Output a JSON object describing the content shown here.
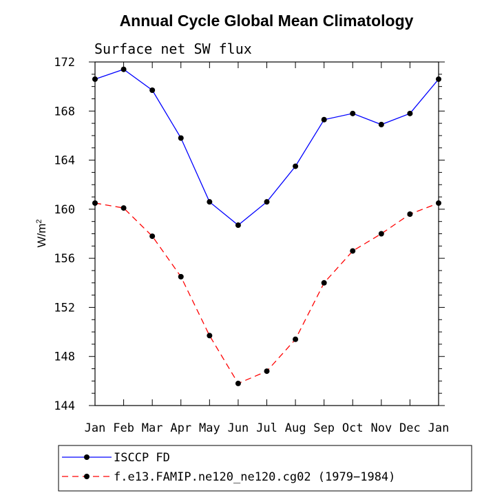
{
  "chart_data": {
    "type": "line",
    "title": "Annual Cycle Global Mean Climatology",
    "subtitle": "Surface net SW flux",
    "ylabel": "W/m",
    "ylabel_superscript": "2",
    "xlabel": "",
    "categories": [
      "Jan",
      "Feb",
      "Mar",
      "Apr",
      "May",
      "Jun",
      "Jul",
      "Aug",
      "Sep",
      "Oct",
      "Nov",
      "Dec",
      "Jan"
    ],
    "ylim": [
      144,
      172
    ],
    "yticks": [
      "144",
      "148",
      "152",
      "156",
      "160",
      "164",
      "168",
      "172"
    ],
    "grid": false,
    "legend_position": "bottom",
    "series": [
      {
        "name": "ISCCP FD",
        "color": "#0000ff",
        "dash": "solid",
        "marker": "filled-circle",
        "values": [
          170.6,
          171.4,
          169.7,
          165.8,
          160.6,
          158.7,
          160.6,
          163.5,
          167.3,
          167.8,
          166.9,
          167.8,
          170.6
        ]
      },
      {
        "name": "f.e13.FAMIP.ne120_ne120.cg02 (1979−1984)",
        "color": "#ff0000",
        "dash": "dashed",
        "marker": "filled-circle",
        "values": [
          160.5,
          160.1,
          157.8,
          154.5,
          149.7,
          145.8,
          146.8,
          149.4,
          154.0,
          156.6,
          158.0,
          159.6,
          160.5
        ]
      }
    ]
  }
}
